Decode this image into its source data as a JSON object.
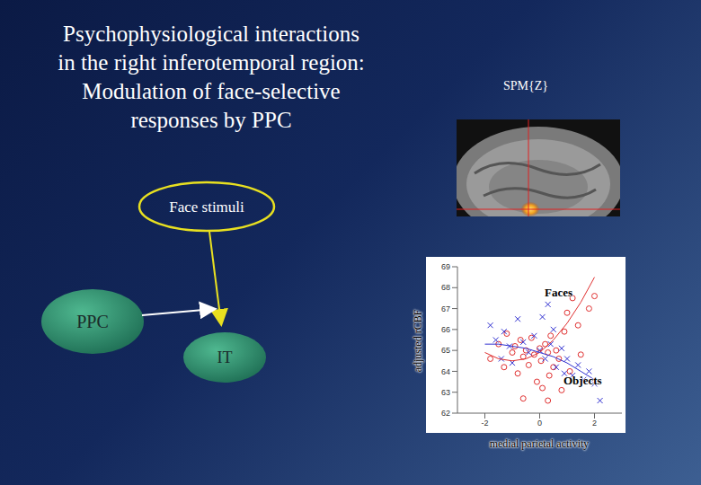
{
  "slide": {
    "title": [
      "Psychophysiological interactions",
      "in the right inferotemporal region:",
      "Modulation of face-selective",
      "responses by PPC"
    ],
    "image_label": "SPM{Z}",
    "diagram": {
      "nodes": [
        {
          "label": "Face stimuli"
        },
        {
          "label": "PPC"
        },
        {
          "label": "IT"
        }
      ]
    }
  },
  "chart_data": {
    "type": "scatter",
    "x_label": "medial parietal activity",
    "y_label": "adjusted rCBF",
    "xlim": [
      -3,
      3
    ],
    "xticks": [
      -2,
      0,
      2
    ],
    "ylim": [
      62,
      69
    ],
    "yticks": [
      62,
      63,
      64,
      65,
      66,
      67,
      68,
      69
    ],
    "grid": false,
    "series": [
      {
        "name": "Faces",
        "color": "#e03030",
        "marker": "circle",
        "x": [
          -1.8,
          -1.5,
          -1.3,
          -1.2,
          -1.0,
          -0.9,
          -0.8,
          -0.7,
          -0.6,
          -0.5,
          -0.4,
          -0.3,
          -0.2,
          -0.1,
          0,
          0.05,
          0.1,
          0.2,
          0.3,
          0.35,
          0.4,
          0.5,
          0.6,
          0.7,
          0.8,
          0.9,
          1.0,
          1.1,
          1.2,
          1.4,
          1.5,
          1.8,
          2.0,
          -0.6,
          0.3
        ],
        "values": [
          64.6,
          65.3,
          64.2,
          65.8,
          64.9,
          65.2,
          63.9,
          65.5,
          64.7,
          65.0,
          64.3,
          65.6,
          64.8,
          63.5,
          65.1,
          64.5,
          63.2,
          65.3,
          64.9,
          63.8,
          65.7,
          64.2,
          65.0,
          64.6,
          63.1,
          65.9,
          66.8,
          64.0,
          67.5,
          66.2,
          64.8,
          67.0,
          67.6,
          62.7,
          62.6
        ],
        "fit": {
          "x": [
            -2,
            -1.5,
            -1,
            -0.5,
            0,
            0.5,
            1,
            1.5,
            2
          ],
          "values": [
            64.9,
            64.6,
            64.5,
            64.6,
            64.9,
            65.5,
            66.3,
            67.3,
            68.5
          ]
        }
      },
      {
        "name": "Objects",
        "color": "#3030d0",
        "marker": "cross",
        "x": [
          -1.8,
          -1.6,
          -1.4,
          -1.3,
          -1.1,
          -1.0,
          -0.8,
          -0.6,
          -0.4,
          -0.2,
          0,
          0.1,
          0.2,
          0.4,
          0.5,
          0.6,
          0.8,
          0.9,
          1.0,
          1.2,
          1.4,
          1.6,
          1.8,
          2.0,
          2.2,
          0.3
        ],
        "values": [
          66.2,
          65.5,
          64.6,
          65.9,
          65.2,
          64.4,
          66.5,
          65.4,
          64.9,
          65.7,
          65.0,
          66.6,
          64.6,
          65.3,
          66.0,
          64.2,
          65.1,
          63.9,
          64.6,
          63.8,
          64.3,
          63.6,
          64.0,
          63.4,
          62.6,
          67.2
        ],
        "fit": {
          "x": [
            -2,
            -1.5,
            -1,
            -0.5,
            0,
            0.5,
            1,
            1.5,
            2
          ],
          "values": [
            65.3,
            65.3,
            65.2,
            65.1,
            64.9,
            64.7,
            64.4,
            64.0,
            63.6
          ]
        }
      }
    ]
  }
}
